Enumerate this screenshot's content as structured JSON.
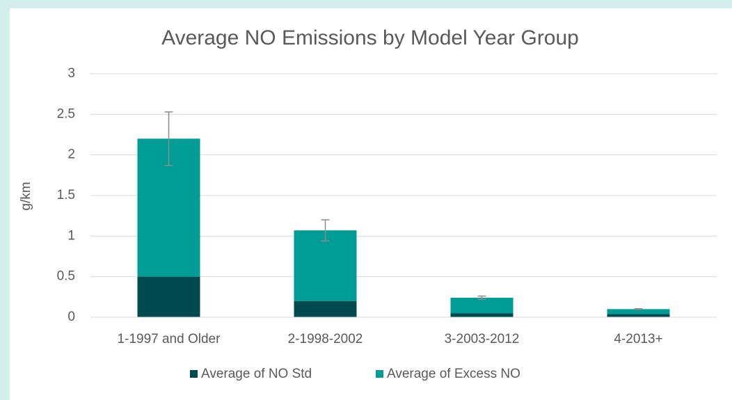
{
  "chart_data": {
    "type": "stacked_bar",
    "title": "Average NO Emissions by Model Year Group",
    "y_label": "g/km",
    "categories": [
      "1-1997 and Older",
      "2-1998-2002",
      "3-2003-2012",
      "4-2013+"
    ],
    "series": [
      {
        "name": "Average of NO Std",
        "color": "#004a4f",
        "values": [
          0.5,
          0.2,
          0.05,
          0.04
        ]
      },
      {
        "name": "Average of Excess NO",
        "color": "#009c96",
        "values": [
          1.7,
          0.87,
          0.19,
          0.06
        ],
        "errors": [
          0.33,
          0.13,
          0.02,
          0.005
        ]
      }
    ],
    "ylim": [
      0,
      3
    ],
    "yticks": [
      0,
      0.5,
      1,
      1.5,
      2,
      2.5,
      3
    ],
    "grid": true,
    "legend": "bottom"
  }
}
